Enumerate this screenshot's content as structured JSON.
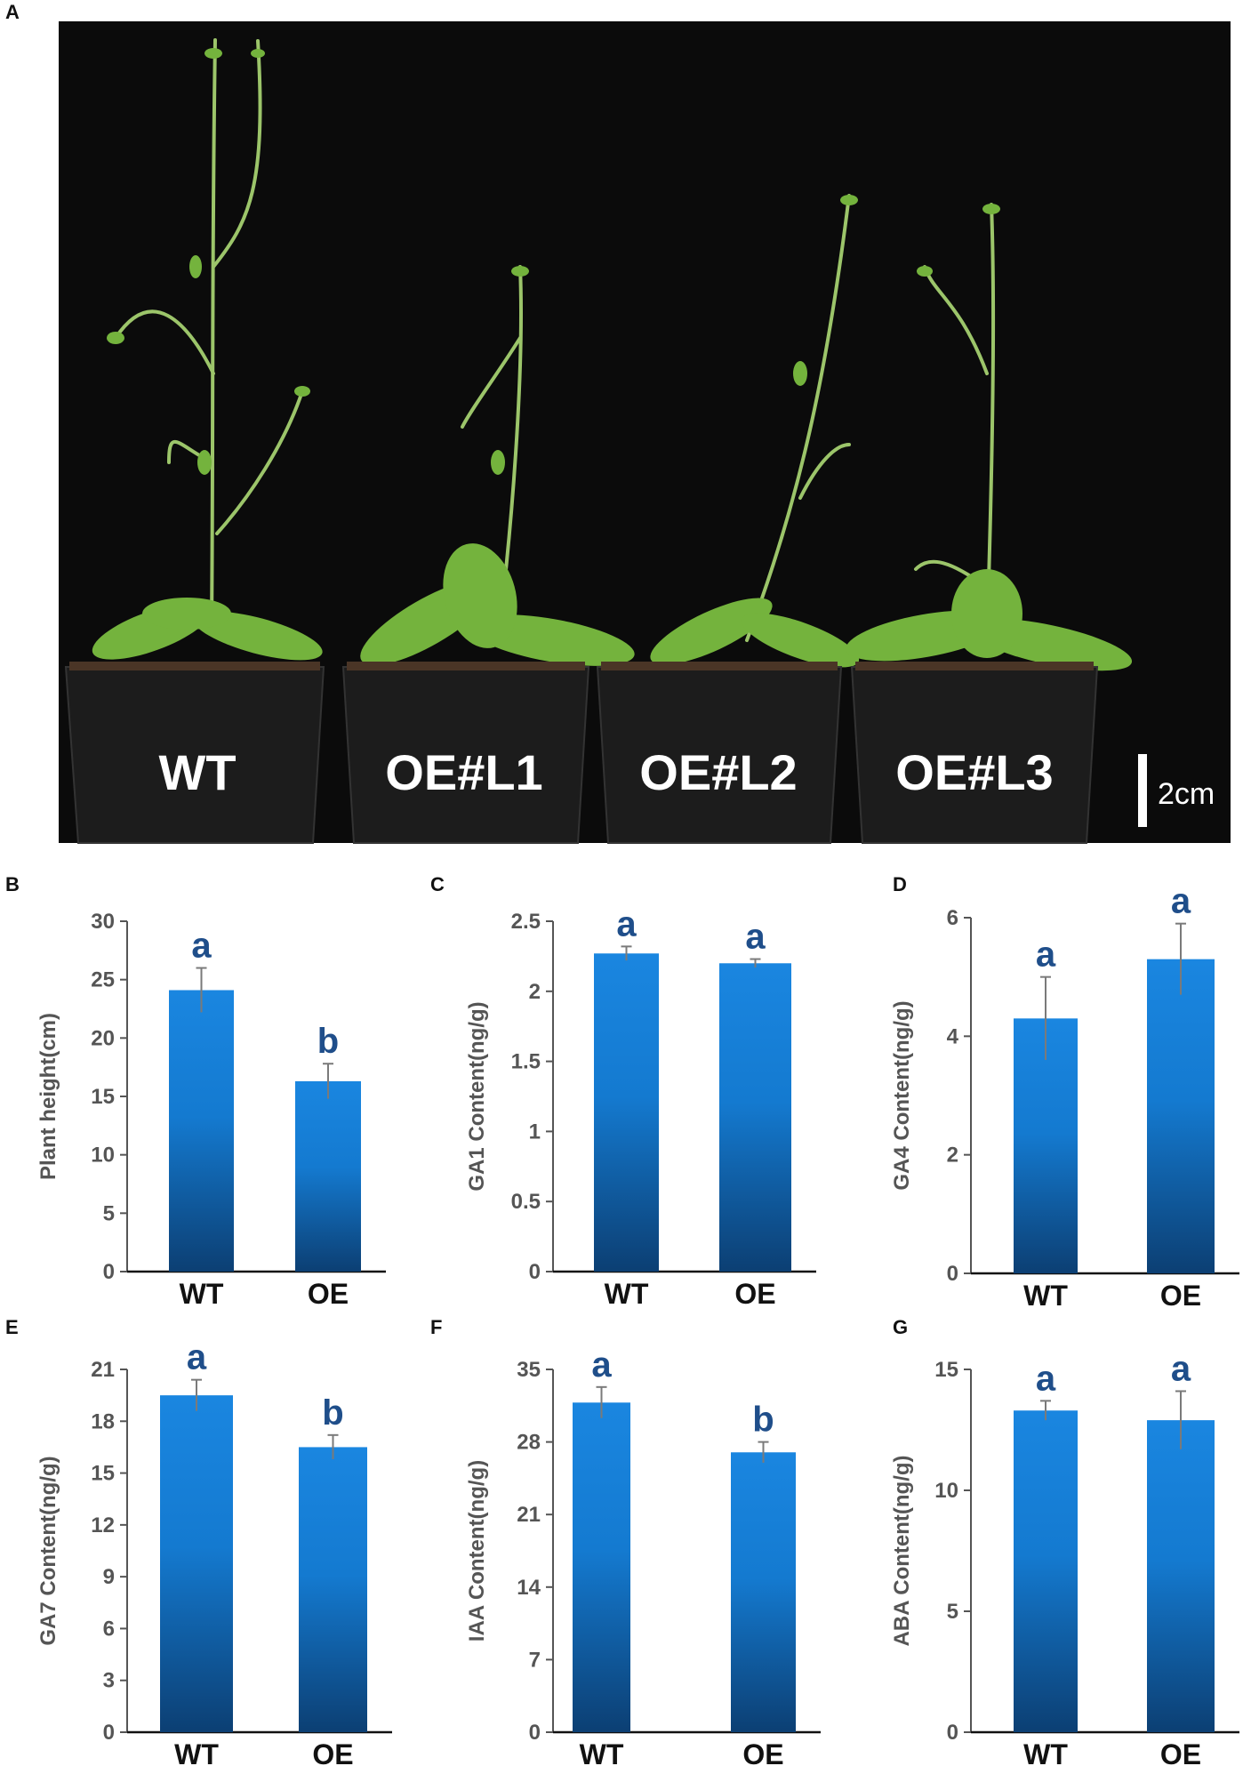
{
  "panel_a": {
    "letter": "A",
    "labels": [
      "WT",
      "OE#L1",
      "OE#L2",
      "OE#L3"
    ],
    "scale_bar": "2cm",
    "colors": {
      "background": "#0b0b0b",
      "pot": "#1c1c1c",
      "stem": "#9cc56a",
      "leaf": "#74b33d"
    }
  },
  "colors": {
    "bar_top": "#1a86e0",
    "bar_bottom": "#0c3f73",
    "axis": "#555555",
    "sig": "#1f4e8a"
  },
  "chart_data": [
    {
      "id": "B",
      "letter": "B",
      "type": "bar",
      "ylabel": "Plant height(cm)",
      "categories": [
        "WT",
        "OE"
      ],
      "values": [
        24.1,
        16.3
      ],
      "errors": [
        1.9,
        1.5
      ],
      "significance": [
        "a",
        "b"
      ],
      "ylim": [
        0,
        30
      ],
      "yticks": [
        0,
        5,
        10,
        15,
        20,
        25,
        30
      ],
      "tick_labels": [
        "0",
        "5",
        "10",
        "15",
        "20",
        "25",
        "30"
      ]
    },
    {
      "id": "C",
      "letter": "C",
      "type": "bar",
      "ylabel": "GA1 Content(ng/g)",
      "categories": [
        "WT",
        "OE"
      ],
      "values": [
        2.27,
        2.2
      ],
      "errors": [
        0.05,
        0.03
      ],
      "significance": [
        "a",
        "a"
      ],
      "ylim": [
        0,
        2.5
      ],
      "yticks": [
        0,
        0.5,
        1,
        1.5,
        2,
        2.5
      ],
      "tick_labels": [
        "0",
        "0.5",
        "1",
        "1.5",
        "2",
        "2.5"
      ]
    },
    {
      "id": "D",
      "letter": "D",
      "type": "bar",
      "ylabel": "GA4 Content(ng/g)",
      "categories": [
        "WT",
        "OE"
      ],
      "values": [
        4.3,
        5.3
      ],
      "errors": [
        0.7,
        0.6
      ],
      "significance": [
        "a",
        "a"
      ],
      "ylim": [
        0,
        6
      ],
      "yticks": [
        0,
        2,
        4,
        6
      ],
      "tick_labels": [
        "0",
        "2",
        "4",
        "6"
      ]
    },
    {
      "id": "E",
      "letter": "E",
      "type": "bar",
      "ylabel": "GA7 Content(ng/g)",
      "categories": [
        "WT",
        "OE"
      ],
      "values": [
        19.5,
        16.5
      ],
      "errors": [
        0.9,
        0.7
      ],
      "significance": [
        "a",
        "b"
      ],
      "ylim": [
        0,
        21
      ],
      "yticks": [
        0,
        3,
        6,
        9,
        12,
        15,
        18,
        21
      ],
      "tick_labels": [
        "0",
        "3",
        "6",
        "9",
        "12",
        "15",
        "18",
        "21"
      ]
    },
    {
      "id": "F",
      "letter": "F",
      "type": "bar",
      "ylabel": "IAA Content(ng/g)",
      "categories": [
        "WT",
        "OE"
      ],
      "values": [
        31.8,
        27.0
      ],
      "errors": [
        1.5,
        1.0
      ],
      "significance": [
        "a",
        "b"
      ],
      "ylim": [
        0,
        35
      ],
      "yticks": [
        0,
        7,
        14,
        21,
        28,
        35
      ],
      "tick_labels": [
        "0",
        "7",
        "14",
        "21",
        "28",
        "35"
      ]
    },
    {
      "id": "G",
      "letter": "G",
      "type": "bar",
      "ylabel": "ABA Content(ng/g)",
      "categories": [
        "WT",
        "OE"
      ],
      "values": [
        13.3,
        12.9
      ],
      "errors": [
        0.4,
        1.2
      ],
      "significance": [
        "a",
        "a"
      ],
      "ylim": [
        0,
        15
      ],
      "yticks": [
        0,
        5,
        10,
        15
      ],
      "tick_labels": [
        "0",
        "5",
        "10",
        "15"
      ]
    }
  ]
}
